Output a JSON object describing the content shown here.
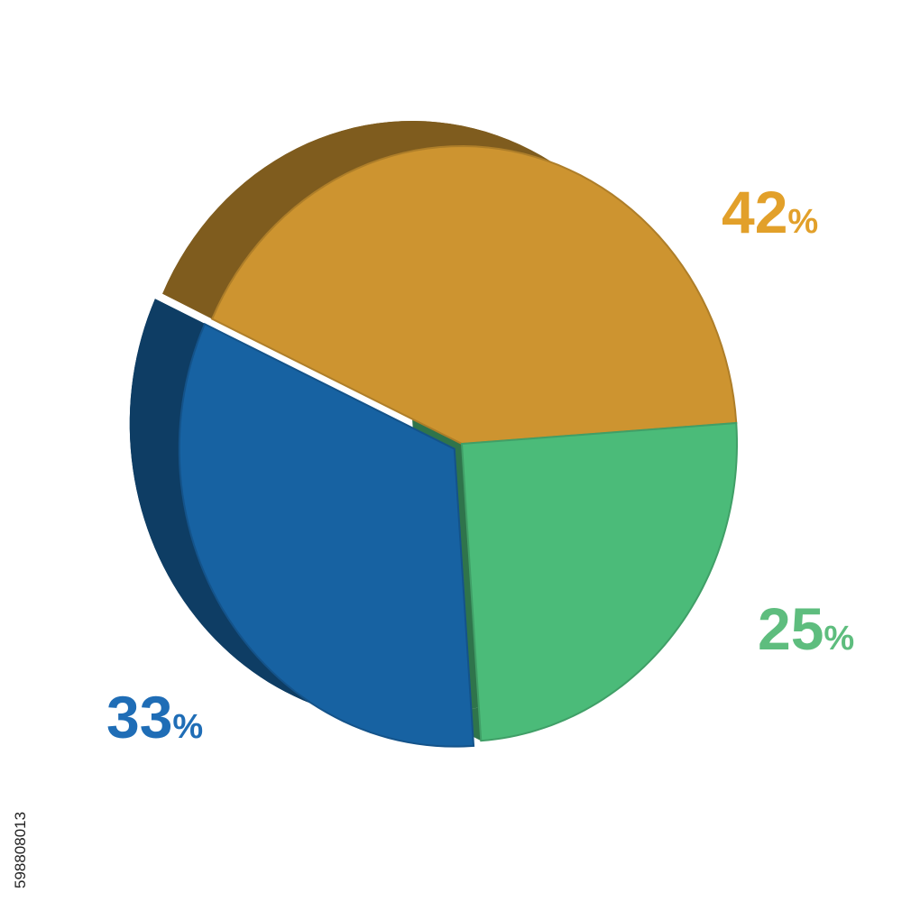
{
  "chart_data": {
    "type": "pie",
    "values": [
      42,
      33,
      25
    ],
    "unit": "%",
    "colors": [
      "#cd9430",
      "#1762a2",
      "#4bbb79"
    ],
    "label_colors": [
      "#e2a02a",
      "#1f6db6",
      "#5ebd7e"
    ]
  },
  "stock_id": "598808013"
}
